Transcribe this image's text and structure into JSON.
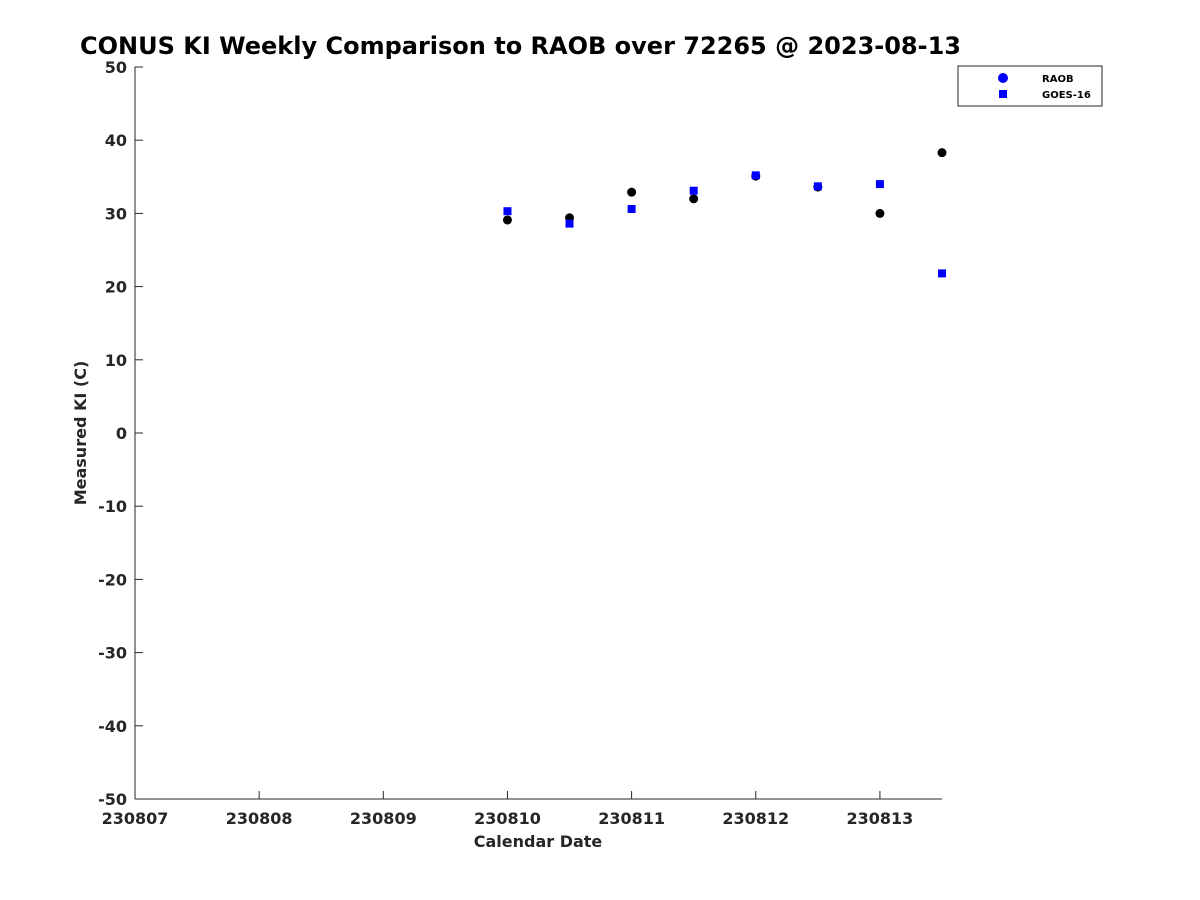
{
  "chart_data": {
    "type": "scatter",
    "title": "CONUS KI Weekly Comparison to RAOB over 72265 @ 2023-08-13",
    "xlabel": "Calendar Date",
    "ylabel": "Measured KI (C)",
    "xlim": [
      "230807",
      "230813 12Z"
    ],
    "ylim": [
      -50,
      50
    ],
    "x_ticks": [
      "230807",
      "230808",
      "230809",
      "230810",
      "230811",
      "230812",
      "230813"
    ],
    "y_ticks": [
      "50",
      "40",
      "30",
      "20",
      "10",
      "0",
      "-10",
      "-20",
      "-30",
      "-40",
      "-50"
    ],
    "grid": false,
    "legend_position": "top-right",
    "series": [
      {
        "name": "RAOB",
        "marker": "circle",
        "color": "#000000",
        "legend_color": "#0000ff",
        "points": [
          {
            "x": "230810 00Z",
            "y": 29.1
          },
          {
            "x": "230810 12Z",
            "y": 29.4
          },
          {
            "x": "230811 00Z",
            "y": 32.9
          },
          {
            "x": "230811 12Z",
            "y": 32.0
          },
          {
            "x": "230812 00Z",
            "y": 35.1
          },
          {
            "x": "230812 12Z",
            "y": 33.6
          },
          {
            "x": "230813 00Z",
            "y": 30.0
          },
          {
            "x": "230813 12Z",
            "y": 38.3
          }
        ]
      },
      {
        "name": "GOES-16",
        "marker": "square",
        "color": "#0000ff",
        "legend_color": "#0000ff",
        "points": [
          {
            "x": "230810 00Z",
            "y": 30.3
          },
          {
            "x": "230810 12Z",
            "y": 28.6
          },
          {
            "x": "230811 00Z",
            "y": 30.6
          },
          {
            "x": "230811 12Z",
            "y": 33.1
          },
          {
            "x": "230812 00Z",
            "y": 35.2
          },
          {
            "x": "230812 12Z",
            "y": 33.7
          },
          {
            "x": "230813 00Z",
            "y": 34.0
          },
          {
            "x": "230813 12Z",
            "y": 21.8
          }
        ]
      }
    ]
  }
}
